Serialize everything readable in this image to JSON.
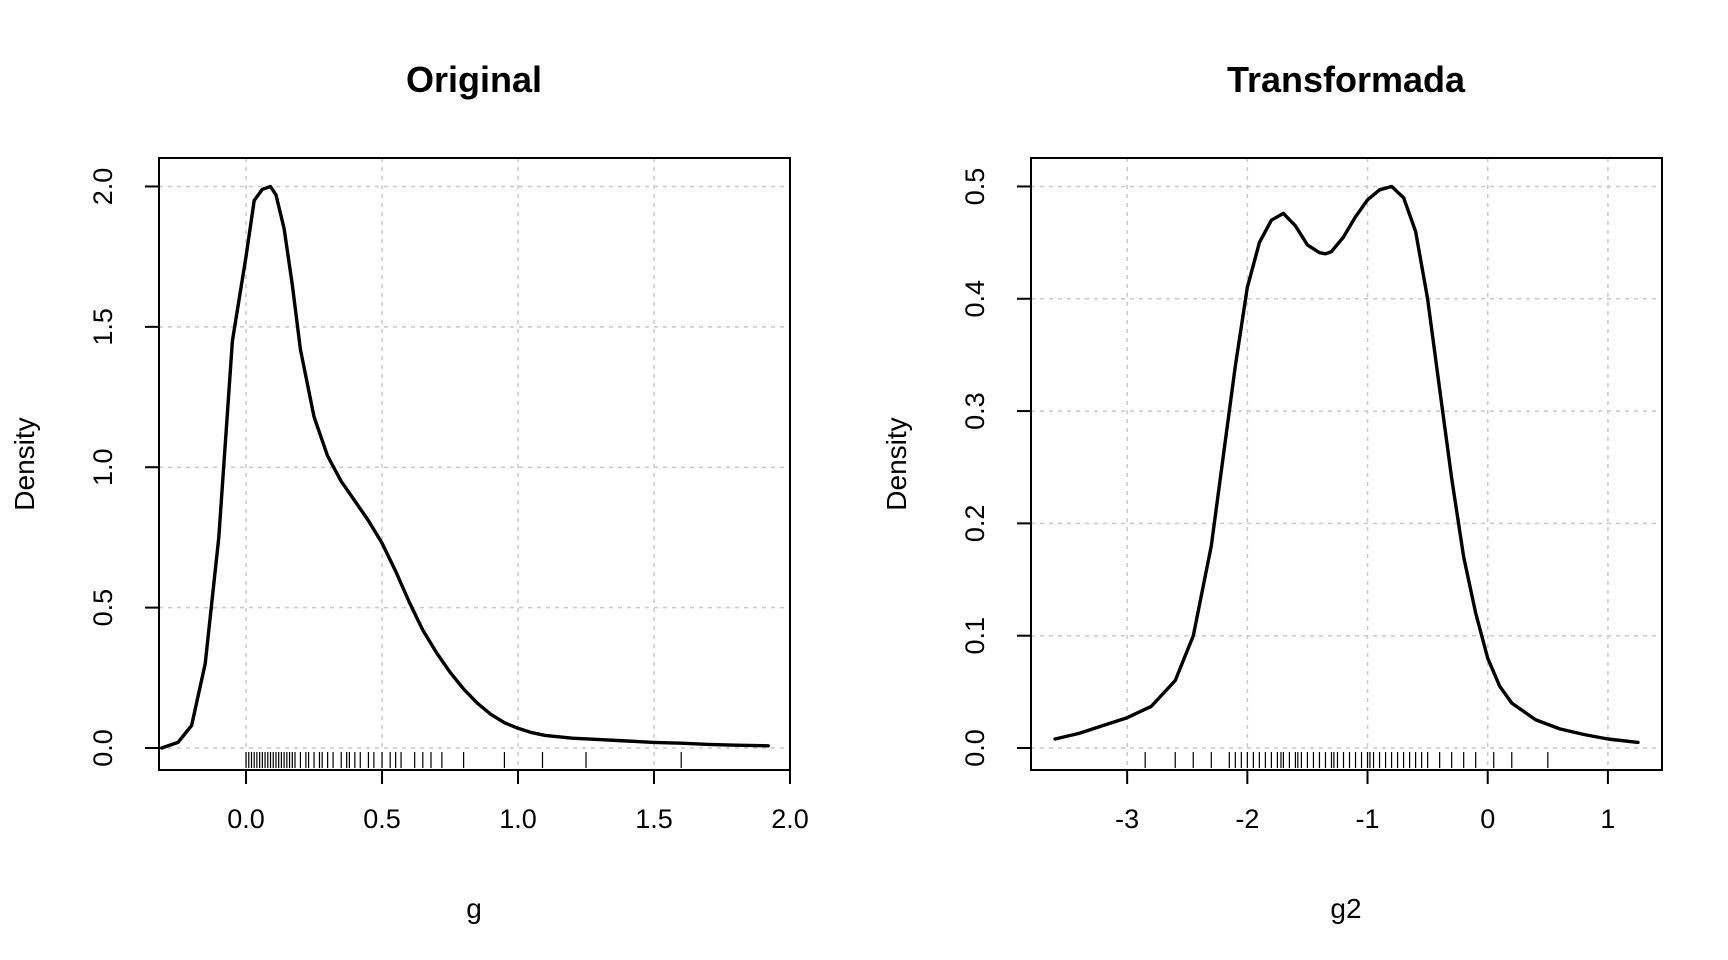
{
  "chart_data": [
    {
      "type": "line",
      "title": "Original",
      "xlabel": "g",
      "ylabel": "Density",
      "xlim": [
        -0.32,
        2.0
      ],
      "ylim": [
        0,
        2.08
      ],
      "xticks": [
        0.0,
        0.5,
        1.0,
        1.5,
        2.0
      ],
      "xtick_labels": [
        "0.0",
        "0.5",
        "1.0",
        "1.5",
        "2.0"
      ],
      "yticks": [
        0.0,
        0.5,
        1.0,
        1.5,
        2.0
      ],
      "ytick_labels": [
        "0.0",
        "0.5",
        "1.0",
        "1.5",
        "2.0"
      ],
      "grid": true,
      "series": [
        {
          "x": [
            -0.31,
            -0.25,
            -0.2,
            -0.15,
            -0.1,
            -0.05,
            0.0,
            0.03,
            0.06,
            0.09,
            0.11,
            0.14,
            0.17,
            0.2,
            0.25,
            0.3,
            0.35,
            0.4,
            0.45,
            0.5,
            0.55,
            0.6,
            0.65,
            0.7,
            0.75,
            0.8,
            0.85,
            0.9,
            0.95,
            1.0,
            1.05,
            1.1,
            1.2,
            1.3,
            1.4,
            1.5,
            1.6,
            1.7,
            1.8,
            1.92
          ],
          "y": [
            0.0,
            0.02,
            0.08,
            0.3,
            0.75,
            1.45,
            1.75,
            1.95,
            1.99,
            2.0,
            1.97,
            1.85,
            1.65,
            1.42,
            1.18,
            1.04,
            0.95,
            0.88,
            0.81,
            0.73,
            0.63,
            0.52,
            0.42,
            0.34,
            0.27,
            0.21,
            0.16,
            0.12,
            0.09,
            0.07,
            0.055,
            0.045,
            0.035,
            0.03,
            0.025,
            0.02,
            0.017,
            0.013,
            0.01,
            0.008
          ]
        }
      ],
      "rug": [
        0.0,
        0.01,
        0.02,
        0.03,
        0.04,
        0.05,
        0.06,
        0.07,
        0.08,
        0.09,
        0.1,
        0.11,
        0.12,
        0.13,
        0.14,
        0.15,
        0.16,
        0.17,
        0.18,
        0.2,
        0.22,
        0.23,
        0.25,
        0.27,
        0.28,
        0.3,
        0.32,
        0.35,
        0.37,
        0.38,
        0.4,
        0.42,
        0.45,
        0.47,
        0.5,
        0.53,
        0.55,
        0.57,
        0.62,
        0.65,
        0.68,
        0.72,
        0.8,
        0.95,
        1.09,
        1.25,
        1.6
      ]
    },
    {
      "type": "line",
      "title": "Transformada",
      "xlabel": "g2",
      "ylabel": "Density",
      "xlim": [
        -3.8,
        1.45
      ],
      "ylim": [
        0,
        0.52
      ],
      "xticks": [
        -3,
        -2,
        -1,
        0,
        1
      ],
      "xtick_labels": [
        "-3",
        "-2",
        "-1",
        "0",
        "1"
      ],
      "yticks": [
        0.0,
        0.1,
        0.2,
        0.3,
        0.4,
        0.5
      ],
      "ytick_labels": [
        "0.0",
        "0.1",
        "0.2",
        "0.3",
        "0.4",
        "0.5"
      ],
      "grid": true,
      "series": [
        {
          "x": [
            -3.6,
            -3.4,
            -3.2,
            -3.0,
            -2.8,
            -2.6,
            -2.45,
            -2.3,
            -2.2,
            -2.1,
            -2.0,
            -1.9,
            -1.8,
            -1.7,
            -1.6,
            -1.5,
            -1.4,
            -1.35,
            -1.3,
            -1.2,
            -1.1,
            -1.0,
            -0.9,
            -0.8,
            -0.7,
            -0.6,
            -0.5,
            -0.4,
            -0.3,
            -0.2,
            -0.1,
            0.0,
            0.1,
            0.2,
            0.4,
            0.6,
            0.8,
            1.0,
            1.25
          ],
          "y": [
            0.008,
            0.013,
            0.02,
            0.027,
            0.037,
            0.06,
            0.1,
            0.18,
            0.26,
            0.34,
            0.41,
            0.45,
            0.47,
            0.476,
            0.465,
            0.448,
            0.441,
            0.44,
            0.442,
            0.455,
            0.473,
            0.488,
            0.497,
            0.5,
            0.49,
            0.46,
            0.4,
            0.32,
            0.24,
            0.17,
            0.12,
            0.08,
            0.055,
            0.04,
            0.025,
            0.017,
            0.012,
            0.008,
            0.005
          ]
        }
      ],
      "rug": [
        -2.85,
        -2.6,
        -2.45,
        -2.3,
        -2.15,
        -2.1,
        -2.05,
        -2.0,
        -1.95,
        -1.9,
        -1.85,
        -1.8,
        -1.75,
        -1.72,
        -1.7,
        -1.65,
        -1.6,
        -1.58,
        -1.55,
        -1.5,
        -1.45,
        -1.4,
        -1.35,
        -1.3,
        -1.28,
        -1.25,
        -1.2,
        -1.15,
        -1.1,
        -1.05,
        -1.0,
        -0.98,
        -0.95,
        -0.9,
        -0.85,
        -0.8,
        -0.75,
        -0.7,
        -0.65,
        -0.6,
        -0.55,
        -0.5,
        -0.4,
        -0.3,
        -0.2,
        -0.1,
        0.05,
        0.2,
        0.5
      ]
    }
  ]
}
